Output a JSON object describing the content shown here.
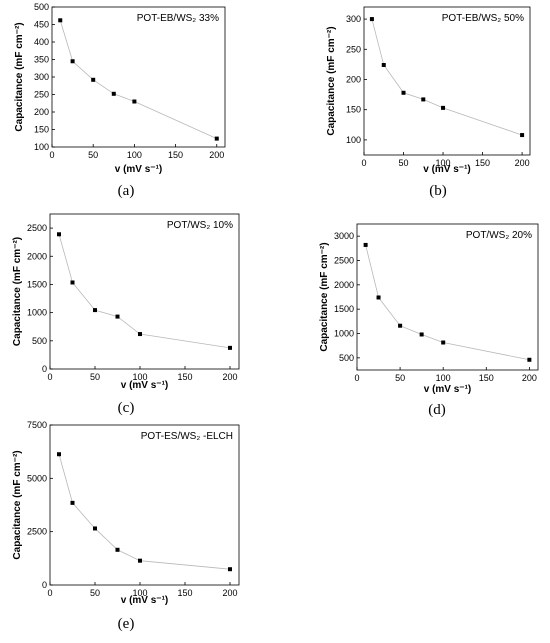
{
  "chart_data": [
    {
      "type": "line",
      "panel_label": "(a)",
      "annotation": "POT-EB/WS₂ 33%",
      "xlabel": "v (mV s⁻¹)",
      "ylabel": "Capacitance (mF cm⁻²)",
      "x": [
        10,
        25,
        50,
        75,
        100,
        200
      ],
      "values": [
        462,
        345,
        292,
        252,
        230,
        124
      ],
      "xlim": [
        0,
        210
      ],
      "ylim": [
        100,
        500
      ],
      "xticks": [
        0,
        50,
        100,
        150,
        200
      ],
      "yticks": [
        100,
        150,
        200,
        250,
        300,
        350,
        400,
        450,
        500
      ],
      "line_color": "#b8b8b8",
      "marker_color": "#000000"
    },
    {
      "type": "line",
      "panel_label": "(b)",
      "annotation": "POT-EB/WS₂ 50%",
      "xlabel": "v (mV s⁻¹)",
      "ylabel": "Capacitance (mF cm⁻²)",
      "x": [
        10,
        25,
        50,
        75,
        100,
        200
      ],
      "values": [
        300,
        224,
        178,
        167,
        153,
        108
      ],
      "xlim": [
        0,
        210
      ],
      "ylim": [
        75,
        320
      ],
      "xticks": [
        0,
        50,
        100,
        150,
        200
      ],
      "yticks": [
        100,
        150,
        200,
        250,
        300
      ],
      "line_color": "#b8b8b8",
      "marker_color": "#000000"
    },
    {
      "type": "line",
      "panel_label": "(c)",
      "annotation": "POT/WS₂ 10%",
      "xlabel": "v (mV s⁻¹)",
      "ylabel": "Capacitance (mF cm⁻²)",
      "x": [
        10,
        25,
        50,
        75,
        100,
        200
      ],
      "values": [
        2390,
        1535,
        1045,
        930,
        620,
        375
      ],
      "xlim": [
        0,
        210
      ],
      "ylim": [
        0,
        2750
      ],
      "xticks": [
        0,
        50,
        100,
        150,
        200
      ],
      "yticks": [
        0,
        500,
        1000,
        1500,
        2000,
        2500
      ],
      "line_color": "#b8b8b8",
      "marker_color": "#000000"
    },
    {
      "type": "line",
      "panel_label": "(d)",
      "annotation": "POT/WS₂ 20%",
      "xlabel": "v (mV s⁻¹)",
      "ylabel": "Capacitance (mF cm⁻²)",
      "x": [
        10,
        25,
        50,
        75,
        100,
        200
      ],
      "values": [
        2820,
        1740,
        1160,
        980,
        815,
        460
      ],
      "xlim": [
        0,
        210
      ],
      "ylim": [
        250,
        3250
      ],
      "xticks": [
        0,
        50,
        100,
        150,
        200
      ],
      "yticks": [
        500,
        1000,
        1500,
        2000,
        2500,
        3000
      ],
      "line_color": "#b8b8b8",
      "marker_color": "#000000"
    },
    {
      "type": "line",
      "panel_label": "(e)",
      "annotation": "POT-ES/WS₂ -ELCH",
      "xlabel": "v (mV s⁻¹)",
      "ylabel": "Capacitance (mF cm⁻²)",
      "x": [
        10,
        25,
        50,
        75,
        100,
        200
      ],
      "values": [
        6130,
        3850,
        2650,
        1650,
        1140,
        740
      ],
      "xlim": [
        0,
        210
      ],
      "ylim": [
        0,
        7500
      ],
      "xticks": [
        0,
        50,
        100,
        150,
        200
      ],
      "yticks": [
        0,
        2500,
        5000,
        7500
      ],
      "line_color": "#b8b8b8",
      "marker_color": "#000000"
    }
  ]
}
